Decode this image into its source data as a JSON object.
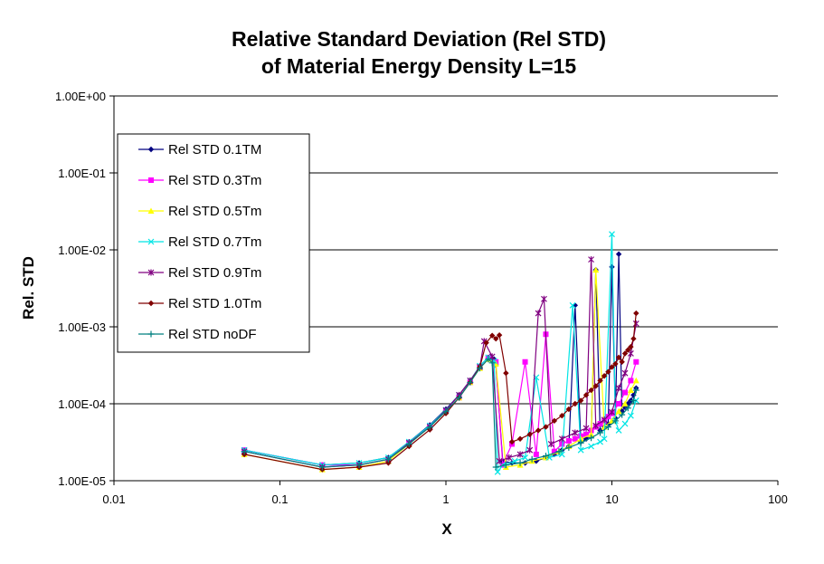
{
  "chart_data": {
    "type": "line",
    "title_lines": [
      "Relative Standard Deviation (Rel STD)",
      "of Material Energy Density L=15"
    ],
    "xlabel": "X",
    "ylabel": "Rel. STD",
    "xscale": "log",
    "yscale": "log",
    "xlim": [
      0.01,
      100
    ],
    "ylim": [
      1e-05,
      1
    ],
    "x_ticks": [
      0.01,
      0.1,
      1,
      10,
      100
    ],
    "x_tick_labels": [
      "0.01",
      "0.1",
      "1",
      "10",
      "100"
    ],
    "y_ticks": [
      1e-05,
      0.0001,
      0.001,
      0.01,
      0.1,
      1
    ],
    "y_tick_labels": [
      "1.00E-05",
      "1.00E-04",
      "1.00E-03",
      "1.00E-02",
      "1.00E-01",
      "1.00E+00"
    ],
    "grid": "horizontal major",
    "legend_position": "left",
    "series": [
      {
        "name": "Rel STD 0.1TM",
        "color": "#000080",
        "marker": "diamond",
        "x": [
          0.061,
          0.18,
          0.3,
          0.45,
          0.6,
          0.8,
          1.0,
          1.2,
          1.4,
          1.6,
          1.8,
          1.95,
          2.0,
          2.2,
          2.5,
          3.0,
          3.5,
          4.0,
          4.5,
          5.0,
          5.5,
          6.0,
          6.5,
          7.0,
          7.5,
          8.0,
          8.5,
          9.0,
          9.5,
          10,
          10.5,
          11,
          11.5,
          12,
          12.5,
          13,
          13.5,
          14
        ],
        "y": [
          2.5e-05,
          1.6e-05,
          1.7e-05,
          2e-05,
          3.2e-05,
          5.3e-05,
          8.5e-05,
          0.00013,
          0.0002,
          0.00031,
          0.0004,
          0.00038,
          0.00032,
          1.8e-05,
          1.7e-05,
          1.7e-05,
          1.8e-05,
          2e-05,
          2.2e-05,
          2.5e-05,
          2.8e-05,
          0.0019,
          3.2e-05,
          3.5e-05,
          3.8e-05,
          0.0055,
          4.5e-05,
          5e-05,
          5.5e-05,
          0.006,
          6.5e-05,
          0.0088,
          8e-05,
          9e-05,
          0.0001,
          0.00011,
          0.00013,
          0.00016
        ]
      },
      {
        "name": "Rel STD 0.3Tm",
        "color": "#FF00FF",
        "marker": "square",
        "x": [
          0.061,
          0.18,
          0.3,
          0.45,
          0.6,
          0.8,
          1.0,
          1.2,
          1.4,
          1.6,
          1.8,
          2.0,
          2.2,
          2.5,
          3.0,
          3.5,
          4.0,
          4.5,
          5.0,
          5.5,
          6.0,
          6.5,
          7.0,
          7.5,
          8.0,
          8.5,
          9.0,
          9.5,
          10,
          11,
          12,
          13,
          14
        ],
        "y": [
          2.5e-05,
          1.6e-05,
          1.6e-05,
          1.9e-05,
          3.1e-05,
          5.1e-05,
          8e-05,
          0.00012,
          0.00019,
          0.0003,
          0.00039,
          0.00035,
          1.6e-05,
          3e-05,
          0.00035,
          2.2e-05,
          0.0008,
          2.4e-05,
          3e-05,
          3.3e-05,
          3.5e-05,
          3.8e-05,
          4e-05,
          4.5e-05,
          5e-05,
          5.5e-05,
          6e-05,
          6.8e-05,
          7.5e-05,
          0.0001,
          0.00014,
          0.0002,
          0.00035
        ]
      },
      {
        "name": "Rel STD 0.5Tm",
        "color": "#FFFF00",
        "marker": "triangle",
        "x": [
          0.061,
          0.18,
          0.3,
          0.45,
          0.6,
          0.8,
          1.0,
          1.2,
          1.4,
          1.6,
          1.8,
          2.0,
          2.3,
          2.8,
          3.3,
          4.0,
          4.8,
          5.5,
          6.5,
          7.5,
          8.0,
          9.0,
          10,
          11,
          12,
          13,
          14
        ],
        "y": [
          2.2e-05,
          1.4e-05,
          1.5e-05,
          1.8e-05,
          3e-05,
          5e-05,
          8e-05,
          0.00012,
          0.00019,
          0.00029,
          0.00038,
          0.00033,
          1.5e-05,
          1.6e-05,
          1.8e-05,
          2e-05,
          2.4e-05,
          2.8e-05,
          3.5e-05,
          4e-05,
          0.0055,
          5e-05,
          6e-05,
          8e-05,
          0.0001,
          0.00015,
          0.0002
        ]
      },
      {
        "name": "Rel STD 0.7Tm",
        "color": "#00E5E5",
        "marker": "x",
        "x": [
          0.061,
          0.18,
          0.3,
          0.45,
          0.6,
          0.8,
          1.0,
          1.2,
          1.4,
          1.6,
          1.8,
          1.95,
          2.05,
          2.2,
          2.6,
          3.0,
          3.5,
          4.2,
          5.0,
          5.8,
          6.5,
          7.5,
          8.5,
          9.0,
          10,
          10.5,
          11,
          12,
          13,
          14
        ],
        "y": [
          2.5e-05,
          1.6e-05,
          1.7e-05,
          2e-05,
          3.2e-05,
          5.2e-05,
          8.3e-05,
          0.00013,
          0.0002,
          0.00031,
          0.0004,
          0.00036,
          1.3e-05,
          1.6e-05,
          1.8e-05,
          2e-05,
          0.00022,
          2e-05,
          2.2e-05,
          0.0019,
          2.5e-05,
          2.8e-05,
          3.2e-05,
          3.5e-05,
          0.016,
          6e-05,
          4.5e-05,
          5.5e-05,
          7e-05,
          0.00011
        ]
      },
      {
        "name": "Rel STD 0.9Tm",
        "color": "#800080",
        "marker": "star",
        "x": [
          0.061,
          0.18,
          0.3,
          0.45,
          0.6,
          0.8,
          1.0,
          1.2,
          1.4,
          1.6,
          1.7,
          1.9,
          2.1,
          2.4,
          2.8,
          3.2,
          3.6,
          3.9,
          4.3,
          5.0,
          6.0,
          7.0,
          7.5,
          8.0,
          9.0,
          10,
          11,
          12,
          13,
          14
        ],
        "y": [
          2.4e-05,
          1.5e-05,
          1.6e-05,
          1.9e-05,
          3.1e-05,
          5e-05,
          8.2e-05,
          0.00013,
          0.0002,
          0.0003,
          0.00065,
          0.00041,
          1.8e-05,
          2e-05,
          2.2e-05,
          2.5e-05,
          0.0015,
          0.0023,
          3e-05,
          3.5e-05,
          4.2e-05,
          4.8e-05,
          0.0075,
          5.2e-05,
          6.2e-05,
          7.8e-05,
          0.00016,
          0.00025,
          0.00045,
          0.0011
        ]
      },
      {
        "name": "Rel STD 1.0Tm",
        "color": "#800000",
        "marker": "diamond",
        "x": [
          0.061,
          0.18,
          0.3,
          0.45,
          0.6,
          0.8,
          1.0,
          1.2,
          1.4,
          1.6,
          1.75,
          1.9,
          2.0,
          2.1,
          2.3,
          2.5,
          2.8,
          3.2,
          3.6,
          4.0,
          4.5,
          5.0,
          5.5,
          6.0,
          6.5,
          7.0,
          7.5,
          8.0,
          8.5,
          9.0,
          9.5,
          10,
          10.5,
          11,
          11.5,
          12,
          12.5,
          13,
          13.5,
          14
        ],
        "y": [
          2.2e-05,
          1.4e-05,
          1.5e-05,
          1.7e-05,
          2.8e-05,
          4.6e-05,
          7.5e-05,
          0.00012,
          0.00019,
          0.0003,
          0.00062,
          0.00077,
          0.0007,
          0.00078,
          0.00025,
          3.2e-05,
          3.5e-05,
          4e-05,
          4.5e-05,
          5e-05,
          6e-05,
          7e-05,
          8.5e-05,
          0.0001,
          0.00011,
          0.00013,
          0.00015,
          0.00017,
          0.0002,
          0.00023,
          0.00026,
          0.0003,
          0.00033,
          0.0004,
          0.00035,
          0.00045,
          0.0005,
          0.00055,
          0.0007,
          0.0015
        ]
      },
      {
        "name": "Rel STD noDF",
        "color": "#008080",
        "marker": "plus",
        "x": [
          0.061,
          0.18,
          0.3,
          0.45,
          0.6,
          0.8,
          1.0,
          1.2,
          1.4,
          1.6,
          1.8,
          1.9,
          2.0,
          2.3,
          2.8,
          3.3,
          4.0,
          4.8,
          5.5,
          6.5,
          7.5,
          8.5,
          9.5,
          10.5,
          11.5,
          12.5,
          13.5,
          14
        ],
        "y": [
          2.4e-05,
          1.5e-05,
          1.6e-05,
          1.9e-05,
          3e-05,
          5e-05,
          8e-05,
          0.00012,
          0.00019,
          0.00029,
          0.00038,
          0.00034,
          1.5e-05,
          1.6e-05,
          1.7e-05,
          1.9e-05,
          2.1e-05,
          2.4e-05,
          2.7e-05,
          3.1e-05,
          3.6e-05,
          4.2e-05,
          5e-05,
          6e-05,
          7.2e-05,
          8.8e-05,
          0.00011,
          0.00015
        ]
      }
    ]
  }
}
